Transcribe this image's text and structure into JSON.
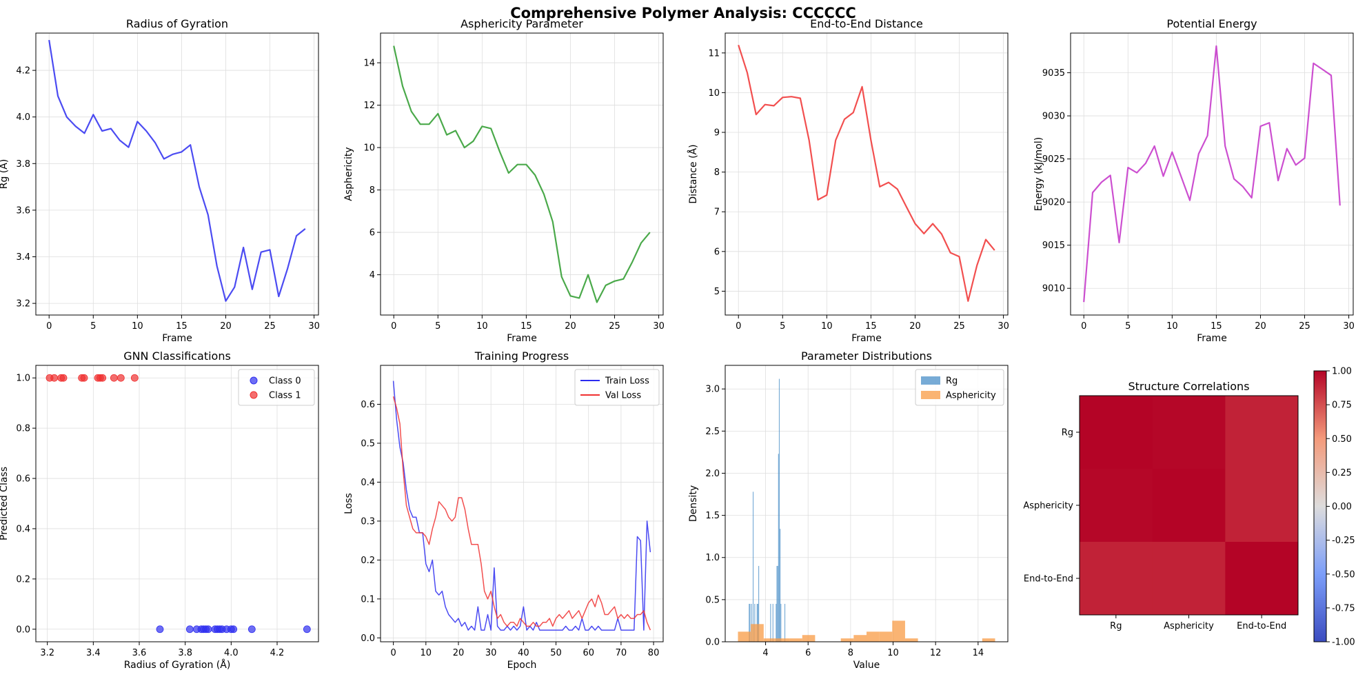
{
  "figure": {
    "title": "Comprehensive Polymer Analysis: CCCCCC"
  },
  "chart_data": [
    {
      "id": "rg",
      "type": "line",
      "title": "Radius of Gyration",
      "xlabel": "Frame",
      "ylabel": "Rg (Å)",
      "color": "#2b2bf0",
      "xlim": [
        -1.5,
        30.5
      ],
      "ylim": [
        3.15,
        4.36
      ],
      "xticks": [
        0,
        5,
        10,
        15,
        20,
        25,
        30
      ],
      "yticks": [
        3.2,
        3.4,
        3.6,
        3.8,
        4.0,
        4.2
      ],
      "tick_decimals": 1,
      "series": [
        {
          "name": "Rg",
          "x": [
            0,
            1,
            2,
            3,
            4,
            5,
            6,
            7,
            8,
            9,
            10,
            11,
            12,
            13,
            14,
            15,
            16,
            17,
            18,
            19,
            20,
            21,
            22,
            23,
            24,
            25,
            26,
            27,
            28,
            29
          ],
          "y": [
            4.33,
            4.09,
            4.0,
            3.96,
            3.93,
            4.01,
            3.94,
            3.95,
            3.9,
            3.87,
            3.98,
            3.94,
            3.89,
            3.82,
            3.84,
            3.85,
            3.88,
            3.7,
            3.58,
            3.36,
            3.21,
            3.27,
            3.44,
            3.26,
            3.42,
            3.43,
            3.23,
            3.35,
            3.49,
            3.52
          ]
        }
      ]
    },
    {
      "id": "asph",
      "type": "line",
      "title": "Asphericity Parameter",
      "xlabel": "Frame",
      "ylabel": "Asphericity",
      "color": "#2a9a2a",
      "xlim": [
        -1.5,
        30.5
      ],
      "ylim": [
        2.1,
        15.4
      ],
      "xticks": [
        0,
        5,
        10,
        15,
        20,
        25,
        30
      ],
      "yticks": [
        4,
        6,
        8,
        10,
        12,
        14
      ],
      "tick_decimals": 0,
      "series": [
        {
          "name": "Asphericity",
          "x": [
            0,
            1,
            2,
            3,
            4,
            5,
            6,
            7,
            8,
            9,
            10,
            11,
            12,
            13,
            14,
            15,
            16,
            17,
            18,
            19,
            20,
            21,
            22,
            23,
            24,
            25,
            26,
            27,
            28,
            29
          ],
          "y": [
            14.8,
            12.9,
            11.7,
            11.1,
            11.1,
            11.6,
            10.6,
            10.8,
            10.0,
            10.3,
            11.0,
            10.9,
            9.8,
            8.8,
            9.2,
            9.2,
            8.7,
            7.8,
            6.5,
            3.9,
            3.0,
            2.9,
            4.0,
            2.7,
            3.5,
            3.7,
            3.8,
            4.6,
            5.5,
            6.0
          ]
        }
      ]
    },
    {
      "id": "e2e",
      "type": "line",
      "title": "End-to-End Distance",
      "xlabel": "Frame",
      "ylabel": "Distance (Å)",
      "color": "#f03030",
      "xlim": [
        -1.5,
        30.5
      ],
      "ylim": [
        4.4,
        11.5
      ],
      "xticks": [
        0,
        5,
        10,
        15,
        20,
        25,
        30
      ],
      "yticks": [
        5,
        6,
        7,
        8,
        9,
        10,
        11
      ],
      "tick_decimals": 0,
      "series": [
        {
          "name": "End-to-End",
          "x": [
            0,
            1,
            2,
            3,
            4,
            5,
            6,
            7,
            8,
            9,
            10,
            11,
            12,
            13,
            14,
            15,
            16,
            17,
            18,
            19,
            20,
            21,
            22,
            23,
            24,
            25,
            26,
            27,
            28,
            29
          ],
          "y": [
            11.2,
            10.5,
            9.45,
            9.7,
            9.67,
            9.88,
            9.9,
            9.86,
            8.8,
            7.3,
            7.42,
            8.8,
            9.33,
            9.5,
            10.15,
            8.8,
            7.63,
            7.74,
            7.57,
            7.13,
            6.7,
            6.45,
            6.7,
            6.44,
            5.97,
            5.87,
            4.75,
            5.65,
            6.3,
            6.03
          ]
        }
      ]
    },
    {
      "id": "energy",
      "type": "line",
      "title": "Potential Energy",
      "xlabel": "Frame",
      "ylabel": "Energy (kJ/mol)",
      "color": "#c330c8",
      "xlim": [
        -1.5,
        30.5
      ],
      "ylim": [
        9006.9,
        9039.6
      ],
      "xticks": [
        0,
        5,
        10,
        15,
        20,
        25,
        30
      ],
      "yticks": [
        9010,
        9015,
        9020,
        9025,
        9030,
        9035
      ],
      "tick_decimals": 0,
      "series": [
        {
          "name": "Energy",
          "x": [
            0,
            1,
            2,
            3,
            4,
            5,
            6,
            7,
            8,
            9,
            10,
            11,
            12,
            13,
            14,
            15,
            16,
            17,
            18,
            19,
            20,
            21,
            22,
            23,
            24,
            25,
            26,
            27,
            28,
            29
          ],
          "y": [
            9008.4,
            9021.1,
            9022.3,
            9023.1,
            9015.3,
            9024.0,
            9023.4,
            9024.5,
            9026.5,
            9023.0,
            9025.8,
            9023.0,
            9020.2,
            9025.6,
            9027.7,
            9038.1,
            9026.5,
            9022.7,
            9021.8,
            9020.5,
            9028.8,
            9029.2,
            9022.5,
            9026.2,
            9024.3,
            9025.1,
            9036.1,
            9035.4,
            9034.7,
            9019.6
          ]
        }
      ]
    },
    {
      "id": "gnn",
      "type": "scatter",
      "title": "GNN Classifications",
      "xlabel": "Radius of Gyration (Å)",
      "ylabel": "Predicted Class",
      "xlim": [
        3.15,
        4.38
      ],
      "ylim": [
        -0.05,
        1.05
      ],
      "xticks": [
        3.2,
        3.4,
        3.6,
        3.8,
        4.0,
        4.2
      ],
      "yticks": [
        0.0,
        0.2,
        0.4,
        0.6,
        0.8,
        1.0
      ],
      "tick_decimals": 1,
      "legend": "top-right",
      "series": [
        {
          "name": "Class 0",
          "color": "#3030f0",
          "x": [
            3.69,
            3.82,
            3.85,
            3.87,
            3.88,
            3.89,
            3.9,
            3.93,
            3.94,
            3.95,
            3.96,
            3.98,
            4.0,
            4.01,
            4.09,
            4.33
          ],
          "y": [
            0,
            0,
            0,
            0,
            0,
            0,
            0,
            0,
            0,
            0,
            0,
            0,
            0,
            0,
            0,
            0
          ]
        },
        {
          "name": "Class 1",
          "color": "#f03030",
          "x": [
            3.21,
            3.23,
            3.26,
            3.27,
            3.35,
            3.36,
            3.42,
            3.43,
            3.44,
            3.49,
            3.52,
            3.58
          ],
          "y": [
            1,
            1,
            1,
            1,
            1,
            1,
            1,
            1,
            1,
            1,
            1,
            1
          ]
        }
      ]
    },
    {
      "id": "train",
      "type": "line",
      "title": "Training Progress",
      "xlabel": "Epoch",
      "ylabel": "Loss",
      "xlim": [
        -3.95,
        82.95
      ],
      "ylim": [
        -0.01,
        0.7
      ],
      "xticks": [
        0,
        10,
        20,
        30,
        40,
        50,
        60,
        70,
        80
      ],
      "yticks": [
        0.0,
        0.1,
        0.2,
        0.3,
        0.4,
        0.5,
        0.6
      ],
      "tick_decimals": 1,
      "legend": "top-right",
      "series": [
        {
          "name": "Train Loss",
          "color": "#2b2bf0",
          "y": [
            0.66,
            0.56,
            0.49,
            0.45,
            0.38,
            0.33,
            0.31,
            0.31,
            0.27,
            0.27,
            0.19,
            0.17,
            0.2,
            0.12,
            0.11,
            0.12,
            0.08,
            0.06,
            0.05,
            0.04,
            0.05,
            0.03,
            0.04,
            0.02,
            0.03,
            0.02,
            0.08,
            0.02,
            0.02,
            0.06,
            0.02,
            0.18,
            0.03,
            0.02,
            0.02,
            0.03,
            0.02,
            0.03,
            0.02,
            0.03,
            0.08,
            0.02,
            0.03,
            0.02,
            0.04,
            0.02,
            0.02,
            0.02,
            0.02,
            0.02,
            0.02,
            0.02,
            0.02,
            0.03,
            0.02,
            0.02,
            0.03,
            0.02,
            0.05,
            0.02,
            0.02,
            0.03,
            0.02,
            0.03,
            0.02,
            0.02,
            0.02,
            0.02,
            0.02,
            0.05,
            0.02,
            0.02,
            0.02,
            0.02,
            0.02,
            0.26,
            0.25,
            0.02,
            0.3,
            0.22
          ]
        },
        {
          "name": "Val Loss",
          "color": "#f03030",
          "y": [
            0.62,
            0.59,
            0.55,
            0.43,
            0.34,
            0.31,
            0.28,
            0.27,
            0.27,
            0.27,
            0.26,
            0.24,
            0.28,
            0.31,
            0.35,
            0.34,
            0.33,
            0.31,
            0.3,
            0.31,
            0.36,
            0.36,
            0.33,
            0.28,
            0.24,
            0.24,
            0.24,
            0.19,
            0.12,
            0.1,
            0.12,
            0.08,
            0.05,
            0.06,
            0.04,
            0.03,
            0.04,
            0.04,
            0.03,
            0.05,
            0.04,
            0.03,
            0.03,
            0.04,
            0.03,
            0.03,
            0.04,
            0.04,
            0.05,
            0.03,
            0.05,
            0.06,
            0.05,
            0.06,
            0.07,
            0.05,
            0.06,
            0.07,
            0.05,
            0.07,
            0.09,
            0.1,
            0.08,
            0.11,
            0.09,
            0.06,
            0.06,
            0.07,
            0.08,
            0.05,
            0.06,
            0.05,
            0.06,
            0.05,
            0.05,
            0.06,
            0.06,
            0.07,
            0.04,
            0.02
          ]
        }
      ]
    },
    {
      "id": "hist",
      "type": "bar",
      "title": "Parameter Distributions",
      "xlabel": "Value",
      "ylabel": "Density",
      "xlim": [
        2.1,
        15.4
      ],
      "ylim": [
        0,
        3.28
      ],
      "xticks": [
        4,
        6,
        8,
        10,
        12,
        14
      ],
      "yticks": [
        0.0,
        0.5,
        1.0,
        1.5,
        2.0,
        2.5,
        3.0
      ],
      "tick_decimals": 1,
      "legend": "top-right",
      "series": [
        {
          "name": "Rg",
          "color": "#4a8fc8",
          "opacity": 0.75,
          "bin_start": 3.21,
          "bin_width": 0.0373,
          "values": [
            0.45,
            0.45,
            0.0,
            0.45,
            0.0,
            1.78,
            0.0,
            0.45,
            0.0,
            0.0,
            0.45,
            0.45,
            0.9,
            0.0,
            0.0,
            0.0,
            0.0,
            0.0,
            0.0,
            0.0,
            0.0,
            0.0,
            0.0,
            0.0,
            0.0,
            0.0,
            0.0,
            0.45,
            0.0,
            0.0,
            0.45,
            0.0,
            0.0,
            0.0,
            0.45,
            0.9,
            0.9,
            2.23,
            3.12,
            1.34,
            0.45,
            0.0,
            0.0,
            0.0,
            0.0,
            0.45,
            0.0,
            0.0,
            0.0,
            0.0
          ]
        },
        {
          "name": "Asphericity",
          "color": "#f89b44",
          "opacity": 0.75,
          "bin_start": 2.7,
          "bin_width": 0.605,
          "values": [
            0.12,
            0.21,
            0.04,
            0.04,
            0.04,
            0.08,
            0.0,
            0.0,
            0.04,
            0.08,
            0.12,
            0.12,
            0.25,
            0.04,
            0.0,
            0.0,
            0.0,
            0.0,
            0.0,
            0.04
          ]
        }
      ]
    },
    {
      "id": "corr",
      "type": "heatmap",
      "title": "Structure Correlations",
      "labels": [
        "Rg",
        "Asphericity",
        "End-to-End"
      ],
      "matrix": [
        [
          1.0,
          0.99,
          0.9
        ],
        [
          0.99,
          1.0,
          0.9
        ],
        [
          0.9,
          0.9,
          1.0
        ]
      ],
      "cmap": "coolwarm",
      "vmin": -1.0,
      "vmax": 1.0,
      "colorbar_ticks": [
        1.0,
        0.75,
        0.5,
        0.25,
        0.0,
        -0.25,
        -0.5,
        -0.75,
        -1.0
      ]
    }
  ]
}
